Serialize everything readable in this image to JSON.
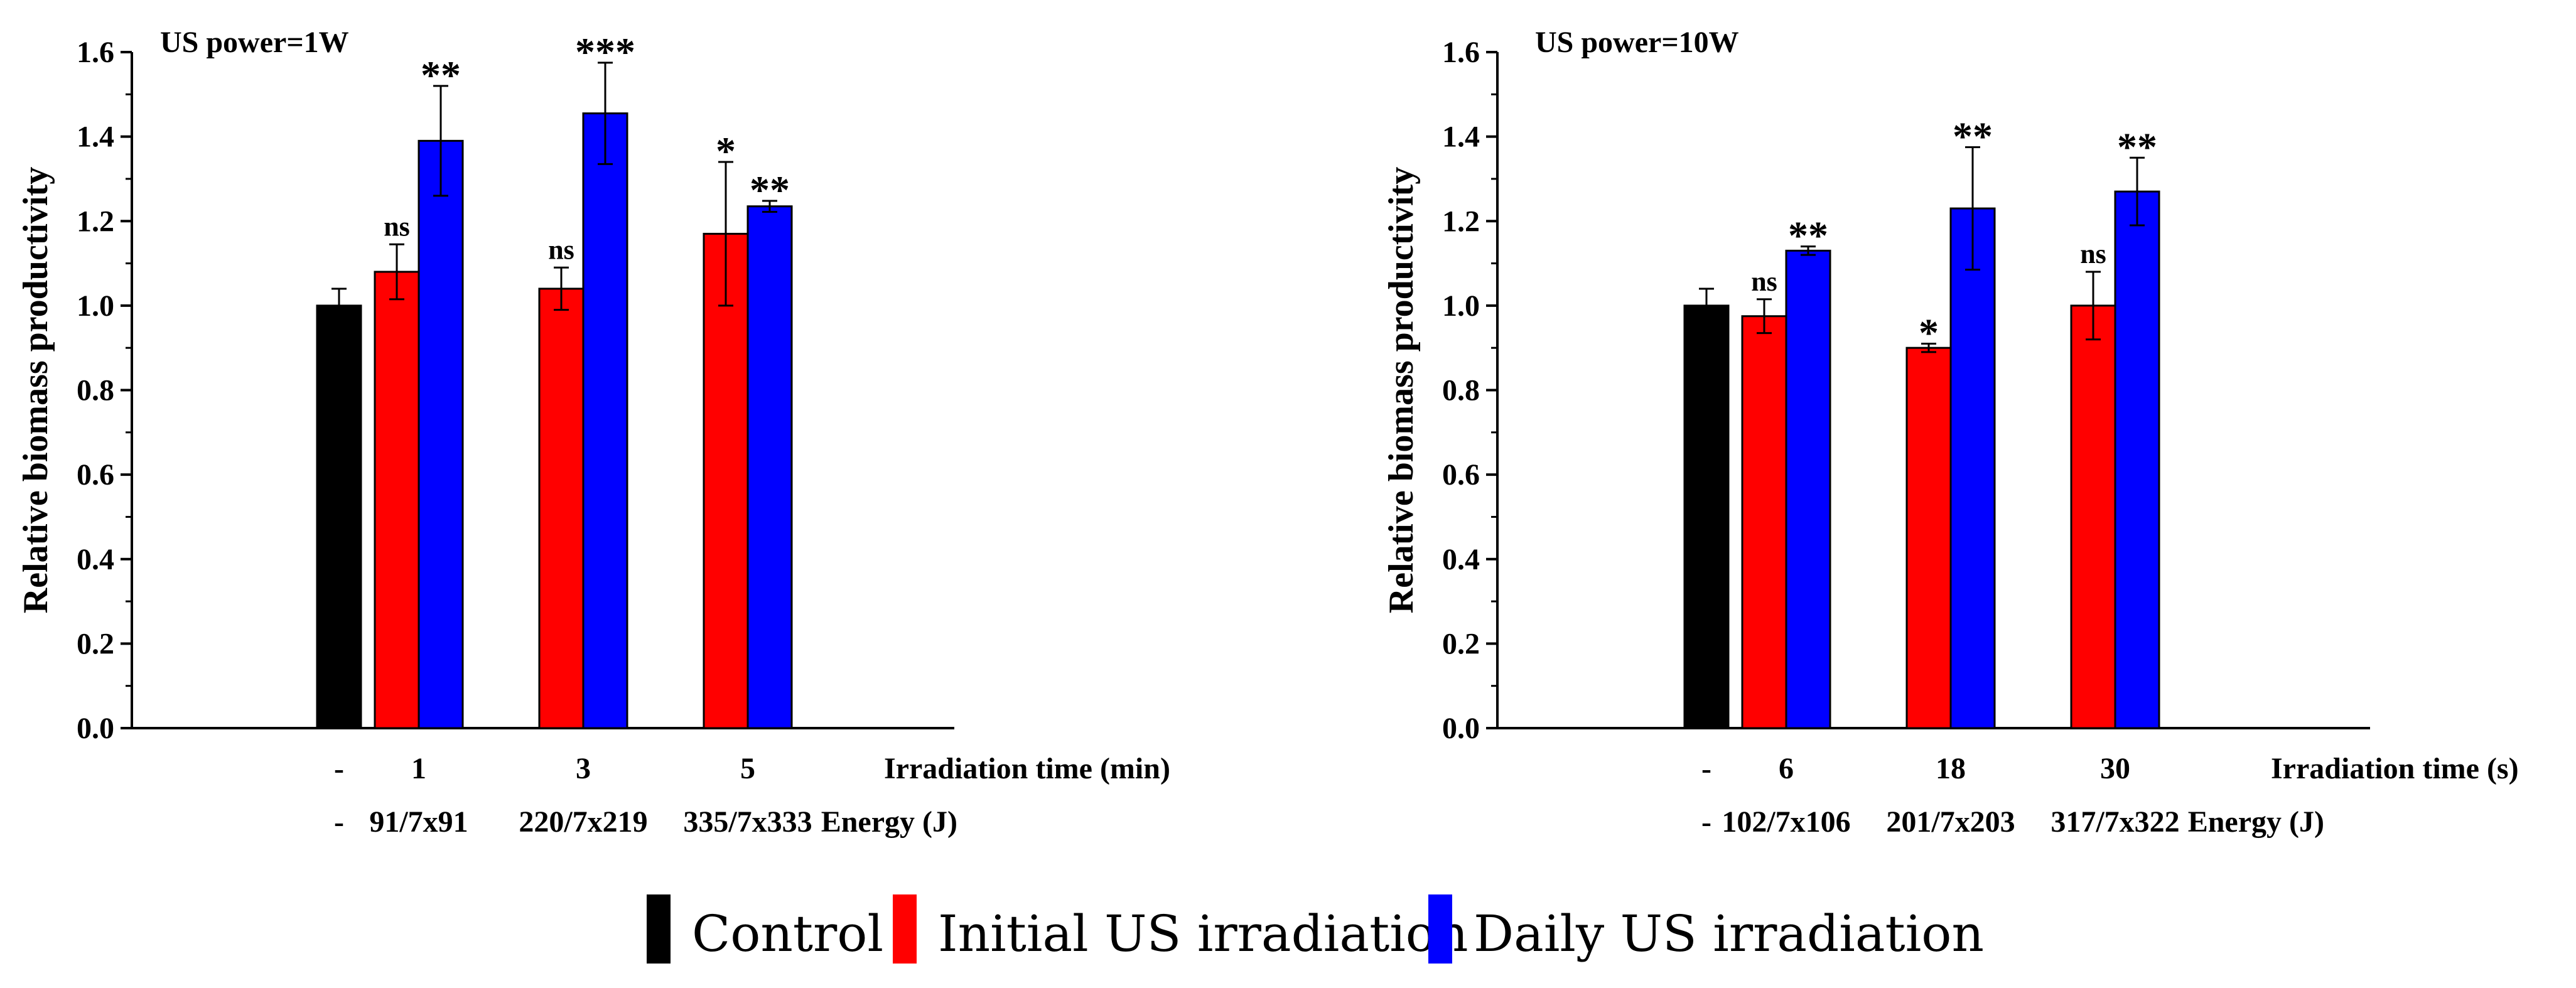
{
  "chart_data": [
    {
      "type": "bar",
      "title": "US power=1W",
      "ylabel": "Relative biomass productivity",
      "ylim": [
        0,
        1.6
      ],
      "yticks": [
        "0.0",
        "0.2",
        "0.4",
        "0.6",
        "0.8",
        "1.0",
        "1.2",
        "1.4",
        "1.6"
      ],
      "x_row1_label": "Irradiation time (min)",
      "x_row2_label": "Energy (J)",
      "groups": [
        {
          "time": "-",
          "energy": "-",
          "bars": [
            {
              "series": "Control",
              "value": 1.0,
              "error": 0.04,
              "sig": ""
            }
          ]
        },
        {
          "time": "1",
          "energy": "91/7x91",
          "bars": [
            {
              "series": "Initial US irradiation",
              "value": 1.08,
              "error": 0.065,
              "sig": "ns"
            },
            {
              "series": "Daily US irradiation",
              "value": 1.39,
              "error": 0.13,
              "sig": "**"
            }
          ]
        },
        {
          "time": "3",
          "energy": "220/7x219",
          "bars": [
            {
              "series": "Initial US irradiation",
              "value": 1.04,
              "error": 0.05,
              "sig": "ns"
            },
            {
              "series": "Daily US irradiation",
              "value": 1.455,
              "error": 0.12,
              "sig": "***"
            }
          ]
        },
        {
          "time": "5",
          "energy": "335/7x333",
          "bars": [
            {
              "series": "Initial US irradiation",
              "value": 1.17,
              "error": 0.17,
              "sig": "*"
            },
            {
              "series": "Daily US irradiation",
              "value": 1.235,
              "error": 0.013,
              "sig": "**"
            }
          ]
        }
      ]
    },
    {
      "type": "bar",
      "title": "US power=10W",
      "ylabel": "Relative biomass productivity",
      "ylim": [
        0,
        1.6
      ],
      "yticks": [
        "0.0",
        "0.2",
        "0.4",
        "0.6",
        "0.8",
        "1.0",
        "1.2",
        "1.4",
        "1.6"
      ],
      "x_row1_label": "Irradiation time (s)",
      "x_row2_label": "Energy (J)",
      "groups": [
        {
          "time": "-",
          "energy": "-",
          "bars": [
            {
              "series": "Control",
              "value": 1.0,
              "error": 0.04,
              "sig": ""
            }
          ]
        },
        {
          "time": "6",
          "energy": "102/7x106",
          "bars": [
            {
              "series": "Initial US irradiation",
              "value": 0.975,
              "error": 0.04,
              "sig": "ns"
            },
            {
              "series": "Daily US irradiation",
              "value": 1.13,
              "error": 0.01,
              "sig": "**"
            }
          ]
        },
        {
          "time": "18",
          "energy": "201/7x203",
          "bars": [
            {
              "series": "Initial US irradiation",
              "value": 0.9,
              "error": 0.01,
              "sig": "*"
            },
            {
              "series": "Daily US irradiation",
              "value": 1.23,
              "error": 0.145,
              "sig": "**"
            }
          ]
        },
        {
          "time": "30",
          "energy": "317/7x322",
          "bars": [
            {
              "series": "Initial US irradiation",
              "value": 1.0,
              "error": 0.08,
              "sig": "ns"
            },
            {
              "series": "Daily US irradiation",
              "value": 1.27,
              "error": 0.08,
              "sig": "**"
            }
          ]
        }
      ]
    }
  ],
  "legend": [
    {
      "label": "Control",
      "color": "#000000"
    },
    {
      "label": "Initial US irradiation",
      "color": "#ff0000"
    },
    {
      "label": "Daily US irradiation",
      "color": "#0000ff"
    }
  ],
  "series_colors": {
    "Control": "#000000",
    "Initial US irradiation": "#ff0000",
    "Daily US irradiation": "#0000ff"
  }
}
